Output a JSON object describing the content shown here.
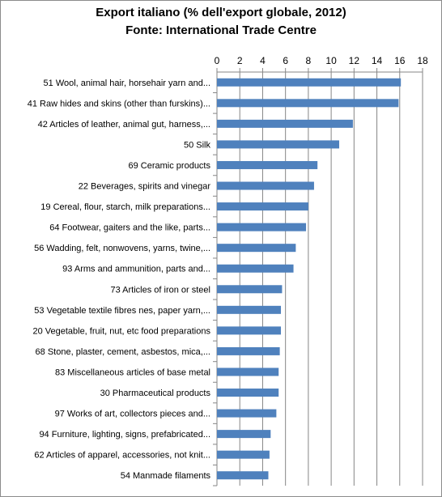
{
  "chart_data": {
    "type": "bar",
    "orientation": "horizontal",
    "title": "Export italiano (% dell'export globale, 2012)",
    "subtitle": "Fonte: International Trade Centre",
    "xlim": [
      0,
      18
    ],
    "xticks": [
      0,
      2,
      4,
      6,
      8,
      10,
      12,
      14,
      16,
      18
    ],
    "x_axis_position": "top",
    "grid": "vertical",
    "legend": "none",
    "bar_color": "#4f81bd",
    "categories": [
      "51 Wool, animal hair, horsehair yarn and...",
      "41 Raw hides and skins (other than furskins)...",
      "42 Articles of leather, animal gut, harness,...",
      "50 Silk",
      "69 Ceramic products",
      "22 Beverages, spirits and vinegar",
      "19 Cereal, flour, starch, milk preparations...",
      "64 Footwear, gaiters and the like, parts...",
      "56 Wadding, felt, nonwovens, yarns, twine,...",
      "93 Arms and ammunition, parts and...",
      "73 Articles of iron or steel",
      "53 Vegetable textile fibres nes, paper yarn,...",
      "20 Vegetable, fruit, nut, etc food preparations",
      "68 Stone, plaster, cement, asbestos, mica,...",
      "83 Miscellaneous articles of base metal",
      "30 Pharmaceutical products",
      "97 Works of art, collectors pieces and...",
      "94 Furniture, lighting, signs, prefabricated...",
      "62 Articles of apparel, accessories, not knit...",
      "54 Manmade filaments"
    ],
    "values": [
      16.1,
      15.9,
      11.9,
      10.7,
      8.8,
      8.5,
      8.0,
      7.8,
      6.9,
      6.7,
      5.7,
      5.6,
      5.6,
      5.5,
      5.4,
      5.4,
      5.2,
      4.7,
      4.6,
      4.5
    ]
  }
}
